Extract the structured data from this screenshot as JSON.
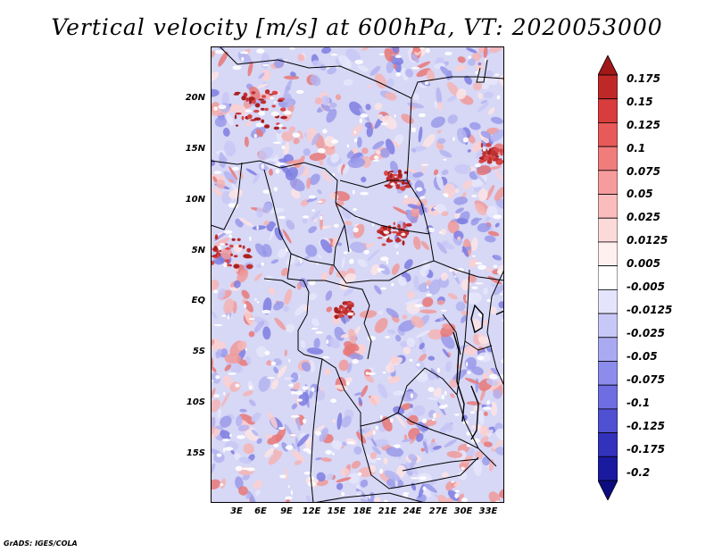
{
  "title": "Vertical velocity [m/s] at 600hPa, VT: 2020053000",
  "footer": "GrADS: IGES/COLA",
  "map": {
    "lat_labels": [
      "20N",
      "15N",
      "10N",
      "5N",
      "EQ",
      "5S",
      "10S",
      "15S"
    ],
    "lon_labels": [
      "3E",
      "6E",
      "9E",
      "12E",
      "15E",
      "18E",
      "21E",
      "24E",
      "27E",
      "30E",
      "33E"
    ],
    "field": "vertical velocity",
    "units": "m/s",
    "level": "600hPa",
    "valid_time": "2020053000"
  },
  "colorbar": {
    "labels": [
      "0.175",
      "0.15",
      "0.125",
      "0.1",
      "0.075",
      "0.05",
      "0.025",
      "0.0125",
      "0.005",
      "-0.005",
      "-0.0125",
      "-0.025",
      "-0.05",
      "-0.075",
      "-0.1",
      "-0.125",
      "-0.175",
      "-0.2"
    ],
    "colors": [
      "#a01818",
      "#c02828",
      "#d83c3c",
      "#e85a5a",
      "#f07c7c",
      "#f69c9c",
      "#fabcbc",
      "#fddada",
      "#fff0f0",
      "#ffffff",
      "#e4e4fc",
      "#c8c8f8",
      "#aaaaf2",
      "#8c8cec",
      "#6e6ee2",
      "#5050d2",
      "#3232bc",
      "#1a1aa0",
      "#0c0c80"
    ]
  }
}
